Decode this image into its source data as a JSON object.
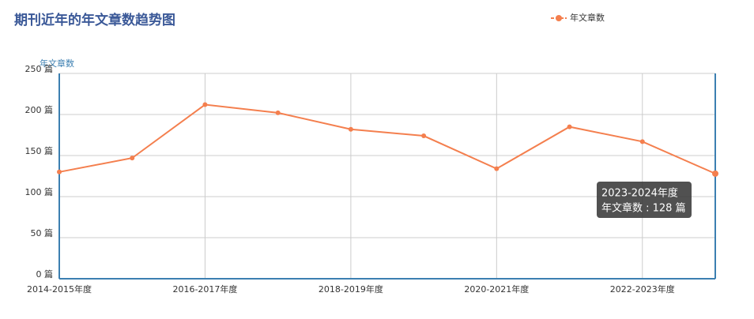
{
  "chart_data": {
    "type": "line",
    "title": "期刊近年的年文章数趋势图",
    "y_axis_name": "年文章数",
    "categories": [
      "2014-2015年度",
      null,
      "2016-2017年度",
      null,
      "2018-2019年度",
      null,
      "2020-2021年度",
      null,
      "2022-2023年度",
      null
    ],
    "series": [
      {
        "name": "年文章数",
        "color": "#f47f4e",
        "values": [
          130,
          147,
          212,
          202,
          182,
          174,
          134,
          185,
          167,
          128
        ]
      }
    ],
    "ylim": [
      0,
      250
    ],
    "yticks": [
      {
        "value": 0,
        "label": "0 篇"
      },
      {
        "value": 50,
        "label": "50 篇"
      },
      {
        "value": 100,
        "label": "100 篇"
      },
      {
        "value": 150,
        "label": "150 篇"
      },
      {
        "value": 200,
        "label": "200 篇"
      },
      {
        "value": 250,
        "label": "250 篇"
      }
    ],
    "grid": true,
    "legend": "top-right",
    "tooltip": {
      "title": "2023-2024年度",
      "text": "年文章数 : 128 篇"
    }
  }
}
